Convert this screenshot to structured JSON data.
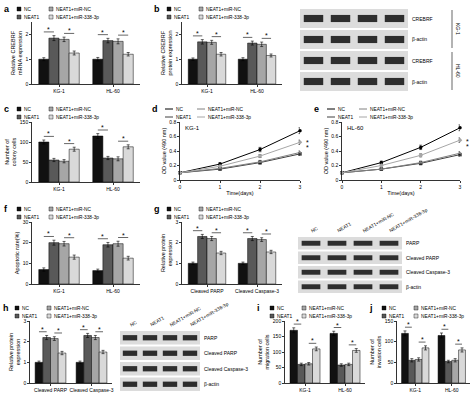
{
  "chart_data": [
    {
      "panel": "a",
      "type": "bar",
      "ylabel": "Relative CREBRF mRNA expression",
      "categories": [
        "KG-1",
        "HL-60"
      ],
      "ylim": [
        0,
        2.5
      ],
      "yticks": [
        0,
        1,
        2
      ],
      "series": [
        {
          "name": "NC",
          "color": "#111111",
          "values": [
            1.0,
            1.0
          ],
          "errors": [
            0.06,
            0.07
          ]
        },
        {
          "name": "NEAT1",
          "color": "#595959",
          "values": [
            1.85,
            1.75
          ],
          "errors": [
            0.1,
            0.09
          ]
        },
        {
          "name": "NEAT1+miR-NC",
          "color": "#a6a6a6",
          "values": [
            1.8,
            1.72
          ],
          "errors": [
            0.09,
            0.1
          ]
        },
        {
          "name": "NEAT1+miR-338-3p",
          "color": "#d9d9d9",
          "values": [
            1.25,
            1.2
          ],
          "errors": [
            0.08,
            0.07
          ]
        }
      ],
      "annotations": [
        {
          "text": "*",
          "category": "KG-1",
          "between": [
            0,
            1
          ]
        },
        {
          "text": "*",
          "category": "KG-1",
          "between": [
            2,
            3
          ]
        },
        {
          "text": "*",
          "category": "HL-60",
          "between": [
            0,
            1
          ]
        },
        {
          "text": "*",
          "category": "HL-60",
          "between": [
            2,
            3
          ]
        }
      ]
    },
    {
      "panel": "b",
      "type": "bar",
      "ylabel": "Relative CREBRF protein expression",
      "categories": [
        "KG-1",
        "HL-60"
      ],
      "ylim": [
        0,
        2.5
      ],
      "yticks": [
        0,
        1,
        2
      ],
      "series": [
        {
          "name": "NC",
          "color": "#111111",
          "values": [
            1.0,
            1.0
          ],
          "errors": [
            0.05,
            0.06
          ]
        },
        {
          "name": "NEAT1",
          "color": "#595959",
          "values": [
            1.7,
            1.65
          ],
          "errors": [
            0.09,
            0.08
          ]
        },
        {
          "name": "NEAT1+miR-NC",
          "color": "#a6a6a6",
          "values": [
            1.68,
            1.6
          ],
          "errors": [
            0.08,
            0.09
          ]
        },
        {
          "name": "NEAT1+miR-338-3p",
          "color": "#d9d9d9",
          "values": [
            1.2,
            1.15
          ],
          "errors": [
            0.07,
            0.06
          ]
        }
      ],
      "annotations": [
        {
          "text": "*",
          "category": "KG-1",
          "between": [
            0,
            1
          ]
        },
        {
          "text": "*",
          "category": "KG-1",
          "between": [
            2,
            3
          ]
        },
        {
          "text": "*",
          "category": "HL-60",
          "between": [
            0,
            1
          ]
        },
        {
          "text": "*",
          "category": "HL-60",
          "between": [
            2,
            3
          ]
        }
      ]
    },
    {
      "panel": "c",
      "type": "bar",
      "ylabel": "Number of colony cells",
      "categories": [
        "KG-1",
        "HL-60"
      ],
      "ylim": [
        0,
        150
      ],
      "yticks": [
        0,
        50,
        100,
        150
      ],
      "series": [
        {
          "name": "NC",
          "color": "#111111",
          "values": [
            100,
            115
          ],
          "errors": [
            5,
            6
          ]
        },
        {
          "name": "NEAT1",
          "color": "#595959",
          "values": [
            55,
            60
          ],
          "errors": [
            4,
            4
          ]
        },
        {
          "name": "NEAT1+miR-NC",
          "color": "#a6a6a6",
          "values": [
            52,
            58
          ],
          "errors": [
            4,
            5
          ]
        },
        {
          "name": "NEAT1+miR-338-3p",
          "color": "#d9d9d9",
          "values": [
            82,
            88
          ],
          "errors": [
            5,
            5
          ]
        }
      ],
      "annotations": [
        {
          "text": "*",
          "category": "KG-1",
          "between": [
            0,
            1
          ]
        },
        {
          "text": "*",
          "category": "KG-1",
          "between": [
            2,
            3
          ]
        },
        {
          "text": "*",
          "category": "HL-60",
          "between": [
            0,
            1
          ]
        },
        {
          "text": "*",
          "category": "HL-60",
          "between": [
            2,
            3
          ]
        }
      ]
    },
    {
      "panel": "d",
      "type": "line",
      "title": "KG-1",
      "xlabel": "Time(days)",
      "ylabel": "OD value (490 nm)",
      "x": [
        0,
        1,
        2,
        3
      ],
      "xlim": [
        0,
        3
      ],
      "xticks": [
        0,
        1,
        2,
        3
      ],
      "ylim": [
        0,
        0.8
      ],
      "yticks": [
        0,
        0.2,
        0.4,
        0.6,
        0.8
      ],
      "series": [
        {
          "name": "NC",
          "color": "#000000",
          "marker": "circle",
          "values": [
            0.1,
            0.22,
            0.42,
            0.68
          ],
          "errors": [
            0.01,
            0.02,
            0.03,
            0.04
          ]
        },
        {
          "name": "NEAT1",
          "color": "#404040",
          "marker": "square",
          "values": [
            0.1,
            0.15,
            0.24,
            0.36
          ],
          "errors": [
            0.01,
            0.01,
            0.02,
            0.02
          ]
        },
        {
          "name": "NEAT1+miR-NC",
          "color": "#808080",
          "marker": "triangle-up",
          "values": [
            0.1,
            0.16,
            0.25,
            0.38
          ],
          "errors": [
            0.01,
            0.01,
            0.02,
            0.02
          ]
        },
        {
          "name": "NEAT1+miR-338-3p",
          "color": "#a6a6a6",
          "marker": "diamond",
          "values": [
            0.1,
            0.19,
            0.33,
            0.52
          ],
          "errors": [
            0.01,
            0.02,
            0.02,
            0.03
          ]
        }
      ],
      "annotations": [
        {
          "text": "*",
          "x": 3,
          "between": [
            0,
            1
          ]
        },
        {
          "text": "*",
          "x": 3,
          "between": [
            2,
            3
          ]
        }
      ]
    },
    {
      "panel": "e",
      "type": "line",
      "title": "HL-60",
      "xlabel": "Time(days)",
      "ylabel": "OD value (490 nm)",
      "x": [
        0,
        1,
        2,
        3
      ],
      "xlim": [
        0,
        3
      ],
      "xticks": [
        0,
        1,
        2,
        3
      ],
      "ylim": [
        0,
        0.8
      ],
      "yticks": [
        0,
        0.2,
        0.4,
        0.6,
        0.8
      ],
      "series": [
        {
          "name": "NC",
          "color": "#000000",
          "marker": "circle",
          "values": [
            0.1,
            0.24,
            0.45,
            0.72
          ],
          "errors": [
            0.01,
            0.02,
            0.03,
            0.04
          ]
        },
        {
          "name": "NEAT1",
          "color": "#404040",
          "marker": "square",
          "values": [
            0.1,
            0.15,
            0.23,
            0.35
          ],
          "errors": [
            0.01,
            0.01,
            0.02,
            0.02
          ]
        },
        {
          "name": "NEAT1+miR-NC",
          "color": "#808080",
          "marker": "triangle-up",
          "values": [
            0.1,
            0.15,
            0.24,
            0.37
          ],
          "errors": [
            0.01,
            0.01,
            0.02,
            0.02
          ]
        },
        {
          "name": "NEAT1+miR-338-3p",
          "color": "#a6a6a6",
          "marker": "diamond",
          "values": [
            0.1,
            0.2,
            0.34,
            0.55
          ],
          "errors": [
            0.01,
            0.02,
            0.02,
            0.03
          ]
        }
      ],
      "annotations": [
        {
          "text": "*",
          "x": 3,
          "between": [
            0,
            1
          ]
        },
        {
          "text": "*",
          "x": 3,
          "between": [
            2,
            3
          ]
        }
      ]
    },
    {
      "panel": "f",
      "type": "bar",
      "ylabel": "Apoptotic rate(%)",
      "categories": [
        "KG-1",
        "HL-60"
      ],
      "ylim": [
        0,
        30
      ],
      "yticks": [
        0,
        10,
        20,
        30
      ],
      "series": [
        {
          "name": "NC",
          "color": "#111111",
          "values": [
            7,
            6.5
          ],
          "errors": [
            0.8,
            0.7
          ]
        },
        {
          "name": "NEAT1",
          "color": "#595959",
          "values": [
            20,
            19
          ],
          "errors": [
            1.2,
            1.1
          ]
        },
        {
          "name": "NEAT1+miR-NC",
          "color": "#a6a6a6",
          "values": [
            19.5,
            19.5
          ],
          "errors": [
            1.1,
            1.2
          ]
        },
        {
          "name": "NEAT1+miR-338-3p",
          "color": "#d9d9d9",
          "values": [
            13,
            12.5
          ],
          "errors": [
            1,
            0.9
          ]
        }
      ],
      "annotations": [
        {
          "text": "*",
          "category": "KG-1",
          "between": [
            0,
            1
          ]
        },
        {
          "text": "*",
          "category": "KG-1",
          "between": [
            2,
            3
          ]
        },
        {
          "text": "*",
          "category": "HL-60",
          "between": [
            0,
            1
          ]
        },
        {
          "text": "*",
          "category": "HL-60",
          "between": [
            2,
            3
          ]
        }
      ]
    },
    {
      "panel": "g",
      "type": "bar",
      "ylabel": "Relative protein expression",
      "categories": [
        "Cleaved PARP",
        "Cleaved Caspase-3"
      ],
      "ylim": [
        0,
        3
      ],
      "yticks": [
        0,
        1,
        2,
        3
      ],
      "series": [
        {
          "name": "NC",
          "color": "#111111",
          "values": [
            1.0,
            1.0
          ],
          "errors": [
            0.06,
            0.06
          ]
        },
        {
          "name": "NEAT1",
          "color": "#595959",
          "values": [
            2.3,
            2.2
          ],
          "errors": [
            0.1,
            0.1
          ]
        },
        {
          "name": "NEAT1+miR-NC",
          "color": "#a6a6a6",
          "values": [
            2.2,
            2.15
          ],
          "errors": [
            0.1,
            0.09
          ]
        },
        {
          "name": "NEAT1+miR-338-3p",
          "color": "#d9d9d9",
          "values": [
            1.5,
            1.55
          ],
          "errors": [
            0.08,
            0.08
          ]
        }
      ],
      "annotations": [
        {
          "text": "*",
          "category": "Cleaved PARP",
          "between": [
            0,
            1
          ]
        },
        {
          "text": "*",
          "category": "Cleaved PARP",
          "between": [
            2,
            3
          ]
        },
        {
          "text": "*",
          "category": "Cleaved Caspase-3",
          "between": [
            0,
            1
          ]
        },
        {
          "text": "*",
          "category": "Cleaved Caspase-3",
          "between": [
            2,
            3
          ]
        }
      ]
    },
    {
      "panel": "h",
      "type": "bar",
      "ylabel": "Relative protein expression",
      "categories": [
        "Cleaved PARP",
        "Cleaved Caspase-3"
      ],
      "ylim": [
        0,
        3
      ],
      "yticks": [
        0,
        1,
        2,
        3
      ],
      "series": [
        {
          "name": "NC",
          "color": "#111111",
          "values": [
            1.0,
            1.0
          ],
          "errors": [
            0.06,
            0.06
          ]
        },
        {
          "name": "NEAT1",
          "color": "#595959",
          "values": [
            2.2,
            2.3
          ],
          "errors": [
            0.1,
            0.1
          ]
        },
        {
          "name": "NEAT1+miR-NC",
          "color": "#a6a6a6",
          "values": [
            2.15,
            2.2
          ],
          "errors": [
            0.09,
            0.1
          ]
        },
        {
          "name": "NEAT1+miR-338-3p",
          "color": "#d9d9d9",
          "values": [
            1.45,
            1.5
          ],
          "errors": [
            0.08,
            0.08
          ]
        }
      ],
      "annotations": [
        {
          "text": "*",
          "category": "Cleaved PARP",
          "between": [
            0,
            1
          ]
        },
        {
          "text": "*",
          "category": "Cleaved PARP",
          "between": [
            2,
            3
          ]
        },
        {
          "text": "*",
          "category": "Cleaved Caspase-3",
          "between": [
            0,
            1
          ]
        },
        {
          "text": "*",
          "category": "Cleaved Caspase-3",
          "between": [
            2,
            3
          ]
        }
      ]
    },
    {
      "panel": "i",
      "type": "bar",
      "ylabel": "Number of migration cells",
      "categories": [
        "KG-1",
        "HL-60"
      ],
      "ylim": [
        0,
        200
      ],
      "yticks": [
        0,
        50,
        100,
        150,
        200
      ],
      "series": [
        {
          "name": "NC",
          "color": "#111111",
          "values": [
            170,
            160
          ],
          "errors": [
            8,
            7
          ]
        },
        {
          "name": "NEAT1",
          "color": "#595959",
          "values": [
            60,
            58
          ],
          "errors": [
            4,
            4
          ]
        },
        {
          "name": "NEAT1+miR-NC",
          "color": "#a6a6a6",
          "values": [
            62,
            60
          ],
          "errors": [
            4,
            4
          ]
        },
        {
          "name": "NEAT1+miR-338-3p",
          "color": "#d9d9d9",
          "values": [
            110,
            105
          ],
          "errors": [
            6,
            6
          ]
        }
      ],
      "annotations": [
        {
          "text": "*",
          "category": "KG-1",
          "between": [
            0,
            1
          ]
        },
        {
          "text": "*",
          "category": "KG-1",
          "between": [
            2,
            3
          ]
        },
        {
          "text": "*",
          "category": "HL-60",
          "between": [
            0,
            1
          ]
        },
        {
          "text": "*",
          "category": "HL-60",
          "between": [
            2,
            3
          ]
        }
      ]
    },
    {
      "panel": "j",
      "type": "bar",
      "ylabel": "Number of invasion cells",
      "categories": [
        "KG-1",
        "HL-60"
      ],
      "ylim": [
        0,
        150
      ],
      "yticks": [
        0,
        50,
        100,
        150
      ],
      "series": [
        {
          "name": "NC",
          "color": "#111111",
          "values": [
            120,
            115
          ],
          "errors": [
            6,
            6
          ]
        },
        {
          "name": "NEAT1",
          "color": "#595959",
          "values": [
            55,
            52
          ],
          "errors": [
            4,
            3
          ]
        },
        {
          "name": "NEAT1+miR-NC",
          "color": "#a6a6a6",
          "values": [
            57,
            55
          ],
          "errors": [
            4,
            4
          ]
        },
        {
          "name": "NEAT1+miR-338-3p",
          "color": "#d9d9d9",
          "values": [
            85,
            80
          ],
          "errors": [
            5,
            5
          ]
        }
      ],
      "annotations": [
        {
          "text": "*",
          "category": "KG-1",
          "between": [
            0,
            1
          ]
        },
        {
          "text": "*",
          "category": "KG-1",
          "between": [
            2,
            3
          ]
        },
        {
          "text": "*",
          "category": "HL-60",
          "between": [
            0,
            1
          ]
        },
        {
          "text": "*",
          "category": "HL-60",
          "between": [
            2,
            3
          ]
        }
      ]
    }
  ],
  "blots": [
    {
      "panel": "b",
      "rows": [
        "CREBRF",
        "β-actin",
        "CREBRF",
        "β-actin"
      ],
      "groups": [
        "KG-1",
        "HL-60"
      ]
    },
    {
      "panel": "g",
      "columns": [
        "NC",
        "NEAT1",
        "NEAT1+miR-NC",
        "NEAT1+miR-338-3p"
      ],
      "rows": [
        "PARP",
        "Cleaved PARP",
        "Cleaved Caspase-3",
        "β-actin"
      ]
    },
    {
      "panel": "h",
      "columns": [
        "NC",
        "NEAT1",
        "NEAT1+miR-NC",
        "NEAT1+miR-338-3p"
      ],
      "rows": [
        "PARP",
        "Cleaved PARP",
        "Cleaved Caspase-3",
        "β-actin"
      ]
    }
  ]
}
